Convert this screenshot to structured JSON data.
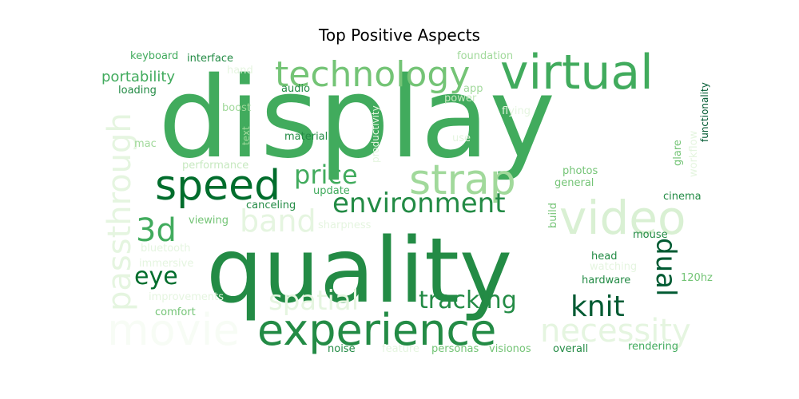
{
  "chart_data": {
    "type": "wordcloud",
    "title": "Top Positive Aspects",
    "colormap": "Greens",
    "words": [
      {
        "text": "display",
        "rank": 1
      },
      {
        "text": "quality",
        "rank": 2
      },
      {
        "text": "experience",
        "rank": 3
      },
      {
        "text": "virtual",
        "rank": 4
      },
      {
        "text": "video",
        "rank": 5
      },
      {
        "text": "technology",
        "rank": 6
      },
      {
        "text": "strap",
        "rank": 7
      },
      {
        "text": "speed",
        "rank": 8
      },
      {
        "text": "movie",
        "rank": 9
      },
      {
        "text": "passthrough",
        "rank": 10
      },
      {
        "text": "necessity",
        "rank": 11
      },
      {
        "text": "environment",
        "rank": 12
      },
      {
        "text": "price",
        "rank": 13
      },
      {
        "text": "band",
        "rank": 14
      },
      {
        "text": "3d",
        "rank": 15
      },
      {
        "text": "knit",
        "rank": 16
      },
      {
        "text": "tracking",
        "rank": 17
      },
      {
        "text": "spatial",
        "rank": 18
      },
      {
        "text": "dual",
        "rank": 19
      },
      {
        "text": "eye",
        "rank": 20
      },
      {
        "text": "portability",
        "rank": 21
      },
      {
        "text": "functionality",
        "rank": 22
      },
      {
        "text": "productivity",
        "rank": 23
      },
      {
        "text": "keyboard",
        "rank": 24
      },
      {
        "text": "interface",
        "rank": 25
      },
      {
        "text": "foundation",
        "rank": 26
      },
      {
        "text": "hand",
        "rank": 27
      },
      {
        "text": "loading",
        "rank": 28
      },
      {
        "text": "audio",
        "rank": 29
      },
      {
        "text": "app",
        "rank": 30
      },
      {
        "text": "power",
        "rank": 31
      },
      {
        "text": "boost",
        "rank": 32
      },
      {
        "text": "flying",
        "rank": 33
      },
      {
        "text": "text",
        "rank": 34
      },
      {
        "text": "material",
        "rank": 35
      },
      {
        "text": "mac",
        "rank": 36
      },
      {
        "text": "use",
        "rank": 37
      },
      {
        "text": "glare",
        "rank": 38
      },
      {
        "text": "workflow",
        "rank": 39
      },
      {
        "text": "performance",
        "rank": 40
      },
      {
        "text": "photos",
        "rank": 41
      },
      {
        "text": "update",
        "rank": 42
      },
      {
        "text": "general",
        "rank": 43
      },
      {
        "text": "build",
        "rank": 44
      },
      {
        "text": "cinema",
        "rank": 45
      },
      {
        "text": "viewing",
        "rank": 46
      },
      {
        "text": "canceling",
        "rank": 47
      },
      {
        "text": "sharpness",
        "rank": 48
      },
      {
        "text": "bluetooth",
        "rank": 49
      },
      {
        "text": "mouse",
        "rank": 50
      },
      {
        "text": "immersive",
        "rank": 51
      },
      {
        "text": "head",
        "rank": 52
      },
      {
        "text": "watching",
        "rank": 53
      },
      {
        "text": "hardware",
        "rank": 54
      },
      {
        "text": "120hz",
        "rank": 55
      },
      {
        "text": "improvements",
        "rank": 56
      },
      {
        "text": "comfort",
        "rank": 57
      },
      {
        "text": "noise",
        "rank": 58
      },
      {
        "text": "feature",
        "rank": 59
      },
      {
        "text": "personas",
        "rank": 60
      },
      {
        "text": "visionos",
        "rank": 61
      },
      {
        "text": "overall",
        "rank": 62
      },
      {
        "text": "rendering",
        "rank": 63
      }
    ]
  }
}
